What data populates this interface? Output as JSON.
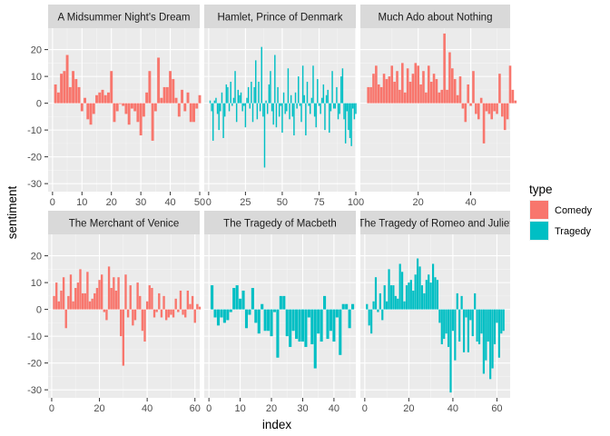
{
  "chart_data": {
    "type": "bar",
    "xlabel": "index",
    "ylabel": "sentiment",
    "ylim": [
      -33,
      28
    ],
    "y_ticks": [
      -30,
      -20,
      -10,
      0,
      10,
      20
    ],
    "grid": true,
    "legend": {
      "title": "type",
      "position": "right",
      "entries": [
        {
          "name": "Comedy",
          "color": "#F8766D"
        },
        {
          "name": "Tragedy",
          "color": "#00BFC4"
        }
      ]
    },
    "panels": [
      {
        "title": "A Midsummer Night's Dream",
        "type": "Comedy",
        "xlim": [
          -1.5,
          50
        ],
        "x_ticks": [
          0,
          10,
          20,
          30,
          40,
          50
        ],
        "values": [
          7,
          4,
          11,
          12,
          18,
          6,
          12,
          9,
          6,
          -3,
          2,
          -6,
          -8,
          -4,
          3,
          4,
          5,
          3,
          4,
          12,
          -7,
          -3,
          0,
          -1,
          -4,
          -8,
          -2,
          -3,
          -7,
          -12,
          -5,
          4,
          12,
          -14,
          -3,
          17,
          2,
          6,
          6,
          12,
          9,
          2,
          -5,
          5,
          -3,
          4,
          -7,
          -7,
          -2,
          3
        ]
      },
      {
        "title": "Hamlet, Prince of Denmark",
        "type": "Tragedy",
        "xlim": [
          -3,
          100
        ],
        "x_ticks": [
          0,
          25,
          50,
          75,
          100
        ],
        "values": [
          1,
          -3,
          -14,
          1,
          2,
          -4,
          -10,
          -3,
          4,
          -13,
          -5,
          7,
          6,
          -3,
          8,
          -1,
          2,
          12,
          -7,
          5,
          3,
          4,
          -3,
          -1,
          -9,
          2,
          6,
          -2,
          8,
          -7,
          6,
          16,
          -6,
          8,
          -3,
          21,
          -5,
          -24,
          1,
          -4,
          7,
          12,
          -3,
          -8,
          18,
          -9,
          6,
          -5,
          -1,
          -11,
          4,
          -4,
          -3,
          13,
          -6,
          3,
          -5,
          -12,
          4,
          -2,
          10,
          -1,
          -7,
          14,
          3,
          -12,
          8,
          -1,
          -4,
          2,
          14,
          -5,
          -9,
          9,
          -1,
          -4,
          2,
          7,
          -10,
          3,
          5,
          -11,
          -3,
          12,
          -2,
          -2,
          6,
          -6,
          -4,
          10,
          13,
          -6,
          -15,
          -3,
          -10,
          -13,
          -16,
          -2,
          -6,
          -4
        ]
      },
      {
        "title": "Much Ado about Nothing",
        "type": "Comedy",
        "xlim": [
          -2,
          55
        ],
        "x_ticks": [
          20,
          40
        ],
        "values": [
          6,
          6,
          11,
          14,
          7,
          6,
          11,
          9,
          10,
          14,
          8,
          12,
          5,
          15,
          4,
          13,
          8,
          11,
          15,
          14,
          7,
          12,
          4,
          14,
          8,
          11,
          9,
          4,
          5,
          26,
          5,
          19,
          13,
          9,
          3,
          10,
          -2,
          -7,
          7,
          -1,
          12,
          -4,
          -6,
          2,
          -15,
          -3,
          -4,
          -6,
          -3,
          -4,
          11,
          -5,
          -10,
          -6,
          14,
          5,
          1
        ]
      },
      {
        "title": "The Merchant of Venice",
        "type": "Comedy",
        "xlim": [
          -1.5,
          62
        ],
        "x_ticks": [
          0,
          20,
          40,
          60
        ],
        "values": [
          5,
          10,
          3,
          7,
          12,
          -7,
          5,
          13,
          3,
          8,
          10,
          15,
          6,
          6,
          14,
          3,
          4,
          6,
          8,
          11,
          13,
          -1,
          -4,
          16,
          8,
          12,
          7,
          12,
          -10,
          -21,
          13,
          -3,
          9,
          -6,
          -4,
          10,
          5,
          -8,
          -12,
          3,
          9,
          8,
          -3,
          -1,
          6,
          -3,
          5,
          -4,
          -3,
          -2,
          -3,
          4,
          -1,
          7,
          -2,
          -3,
          7,
          2,
          5,
          -5,
          2,
          1
        ]
      },
      {
        "title": "The Tragedy of Macbeth",
        "type": "Tragedy",
        "xlim": [
          -1.5,
          47
        ],
        "x_ticks": [
          0,
          10,
          20,
          30,
          40
        ],
        "values": [
          9,
          -3,
          -6,
          -3,
          -5,
          -4,
          -1,
          8,
          9,
          4,
          7,
          -7,
          -2,
          8,
          -5,
          -9,
          2,
          -8,
          -8,
          -10,
          -1,
          -18,
          5,
          5,
          -10,
          -14,
          -8,
          -11,
          -12,
          -12,
          -14,
          -3,
          -13,
          -22,
          -9,
          -12,
          5,
          -11,
          -8,
          -12,
          -3,
          -17,
          2,
          2,
          -7,
          2
        ]
      },
      {
        "title": "The Tragedy of Romeo and Juliet",
        "type": "Tragedy",
        "xlim": [
          -2,
          66
        ],
        "x_ticks": [
          0,
          20,
          40,
          60
        ],
        "values": [
          2,
          -6,
          -9,
          3,
          12,
          -1,
          6,
          -4,
          9,
          3,
          15,
          9,
          9,
          5,
          4,
          17,
          14,
          3,
          9,
          10,
          11,
          7,
          13,
          19,
          16,
          9,
          6,
          11,
          13,
          10,
          17,
          12,
          11,
          -5,
          -13,
          -11,
          -9,
          -14,
          -31,
          -8,
          -19,
          6,
          -12,
          5,
          -16,
          -3,
          -16,
          -4,
          -10,
          6,
          -12,
          -13,
          -9,
          -24,
          -19,
          -12,
          -26,
          -22,
          -13,
          -5,
          -18,
          -9,
          -8
        ]
      }
    ]
  }
}
